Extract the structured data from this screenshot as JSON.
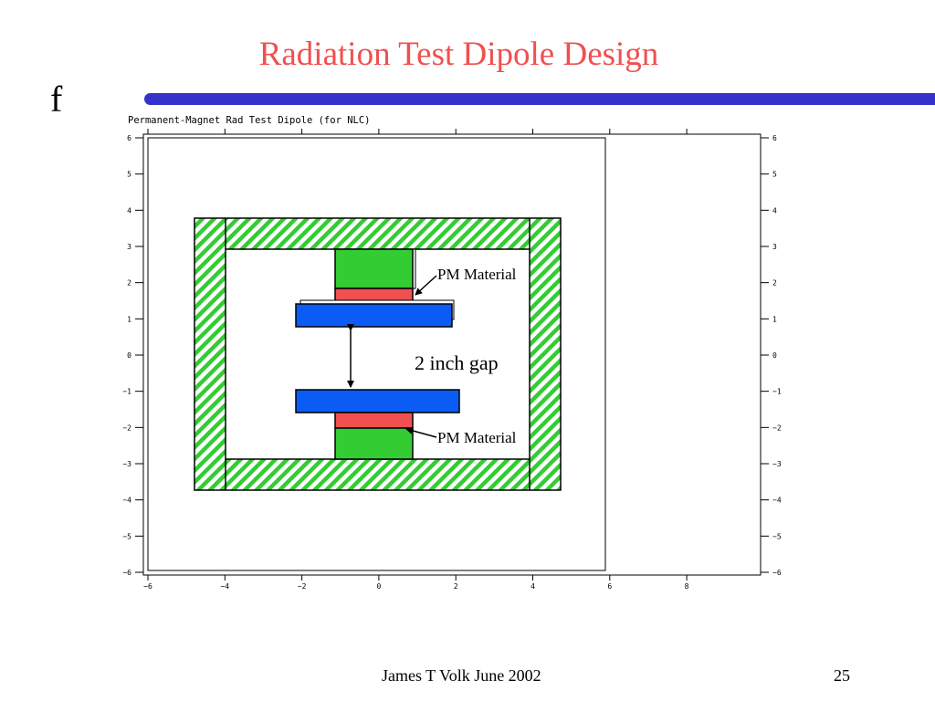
{
  "slide": {
    "title": "Radiation Test Dipole Design",
    "bullet": "f",
    "footer_author": "James T Volk June 2002",
    "page_number": "25"
  },
  "plot": {
    "caption": "Permanent-Magnet Rad Test Dipole (for NLC)",
    "y_ticks": [
      "6",
      "5",
      "4",
      "3",
      "2",
      "1",
      "0",
      "−1",
      "−2",
      "−3",
      "−4",
      "−5",
      "−6"
    ],
    "x_ticks": [
      "−6",
      "−4",
      "−2",
      "0",
      "2",
      "4",
      "6",
      "8"
    ]
  },
  "labels": {
    "pm_top": "PM Material",
    "pm_bottom": "PM Material",
    "gap": "2 inch gap"
  },
  "colors": {
    "title": "#f05050",
    "rule": "#3333cc",
    "yoke_hatch": "#33cc33",
    "pole": "#33cc33",
    "pm": "#f05050",
    "plate": "#0a5cf5"
  }
}
